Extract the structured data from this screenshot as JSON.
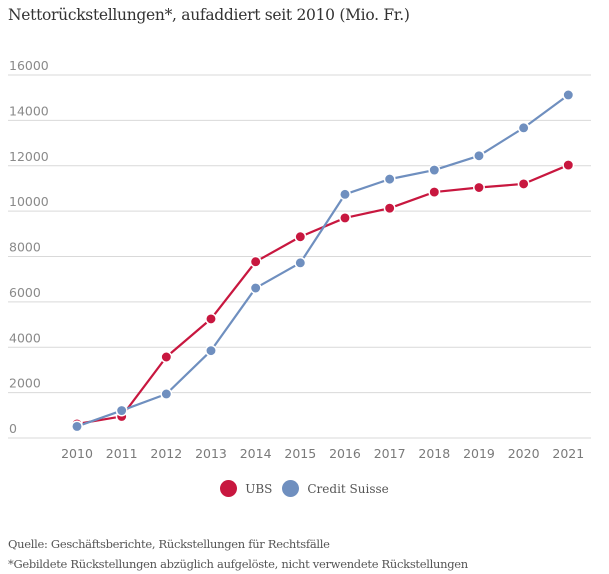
{
  "chart_data": {
    "type": "line",
    "title": "Nettorückstellungen*, aufaddiert seit 2010 (Mio. Fr.)",
    "xlabel": "",
    "ylabel": "",
    "x": [
      "2010",
      "2011",
      "2012",
      "2013",
      "2014",
      "2015",
      "2016",
      "2017",
      "2018",
      "2019",
      "2020",
      "2021"
    ],
    "yticks": [
      "0",
      "2000",
      "4000",
      "6000",
      "8000",
      "10000",
      "12000",
      "14000",
      "16000"
    ],
    "ylim": [
      0,
      16000
    ],
    "grid": true,
    "legend_position": "bottom-center",
    "series": [
      {
        "name": "UBS",
        "color": "#c8173f",
        "values": [
          620,
          950,
          3570,
          5250,
          7770,
          8870,
          9700,
          10130,
          10840,
          11040,
          11200,
          12030
        ]
      },
      {
        "name": "Credit Suisse",
        "color": "#6f8fbf",
        "values": [
          510,
          1210,
          1940,
          3850,
          6610,
          7720,
          10740,
          11410,
          11810,
          12440,
          13670,
          15120
        ]
      }
    ]
  },
  "footer": {
    "source": "Quelle: Geschäftsberichte, Rückstellungen für Rechtsfälle",
    "note": "*Gebildete Rückstellungen abzüglich aufgelöste, nicht verwendete Rückstellungen"
  },
  "colors": {
    "grid": "#d9d9d9",
    "text": "#333333"
  }
}
